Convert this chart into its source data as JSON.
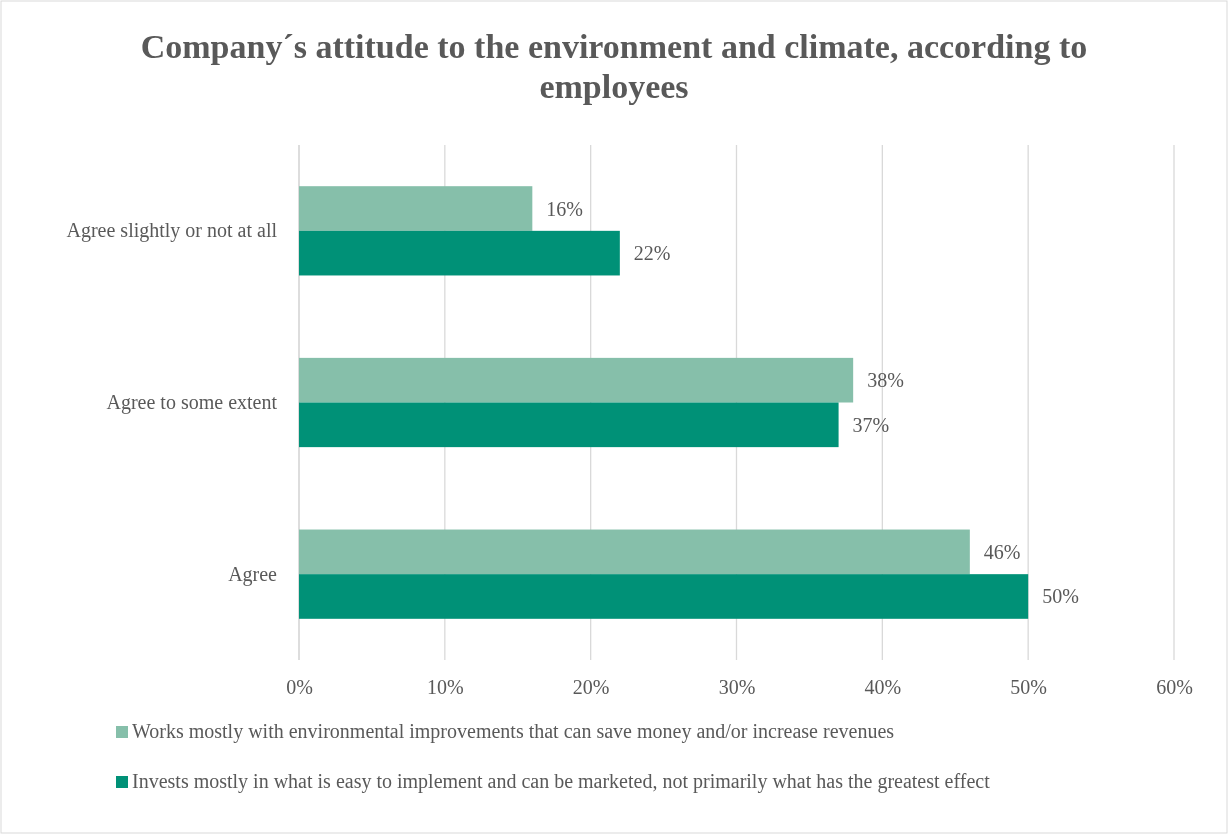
{
  "chart_data": {
    "type": "bar",
    "orientation": "horizontal",
    "title": "Company´s attitude to the environment and climate, according to employees",
    "categories": [
      "Agree slightly or not at all",
      "Agree to some extent",
      "Agree"
    ],
    "series": [
      {
        "name": "Works mostly with environmental improvements that can save money and/or increase revenues",
        "color": "#86bfaa",
        "values": [
          16,
          38,
          46
        ],
        "value_labels": [
          "16%",
          "38%",
          "46%"
        ]
      },
      {
        "name": "Invests mostly in what is easy to implement and can be marketed, not primarily what has the greatest effect",
        "color": "#009177",
        "values": [
          22,
          37,
          50
        ],
        "value_labels": [
          "22%",
          "37%",
          "50%"
        ]
      }
    ],
    "xlim": [
      0,
      60
    ],
    "xticks": [
      {
        "value": 0,
        "label": "0%"
      },
      {
        "value": 10,
        "label": "10%"
      },
      {
        "value": 20,
        "label": "20%"
      },
      {
        "value": 30,
        "label": "30%"
      },
      {
        "value": 40,
        "label": "40%"
      },
      {
        "value": 50,
        "label": "50%"
      },
      {
        "value": 60,
        "label": "60%"
      }
    ],
    "grid": "x",
    "legend": "bottom"
  }
}
